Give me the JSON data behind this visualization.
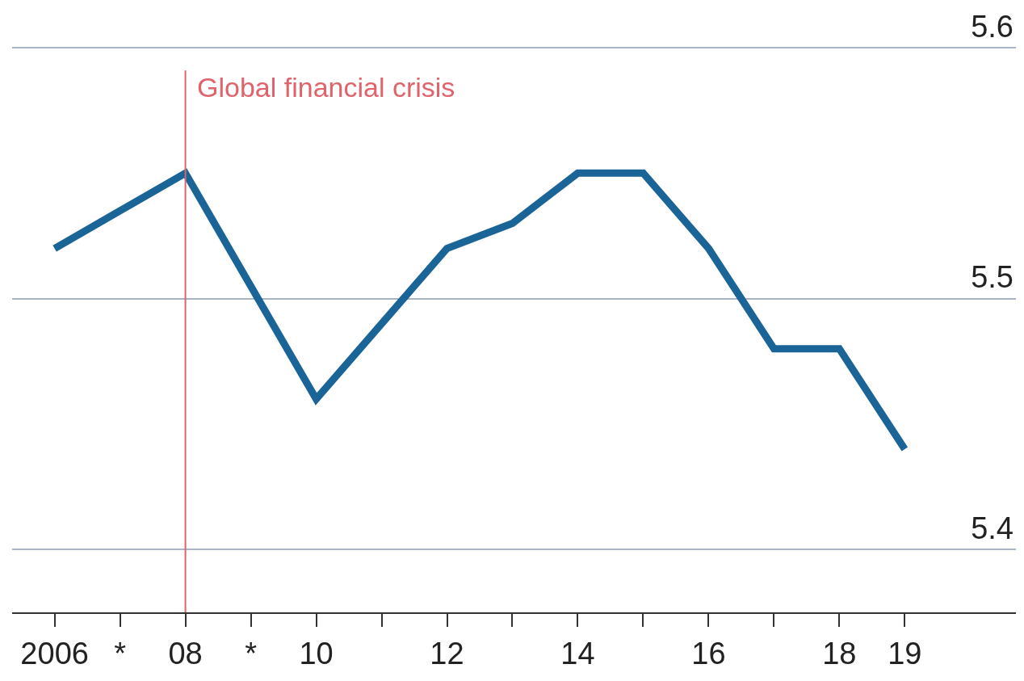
{
  "chart_data": {
    "type": "line",
    "x": [
      2006,
      2007,
      2008,
      2009,
      2010,
      2011,
      2012,
      2013,
      2014,
      2015,
      2016,
      2017,
      2018,
      2019
    ],
    "series": [
      {
        "color": "#1a6497",
        "values": [
          5.52,
          5.535,
          5.55,
          5.505,
          5.46,
          5.49,
          5.52,
          5.53,
          5.55,
          5.55,
          5.52,
          5.48,
          5.48,
          5.44
        ]
      }
    ],
    "xlim": [
      2005.35,
      2020.7
    ],
    "ylim": [
      5.375,
      5.619
    ],
    "xticks": [
      {
        "value": 2006,
        "label": "2006"
      },
      {
        "value": 2007,
        "label": "*"
      },
      {
        "value": 2008,
        "label": "08"
      },
      {
        "value": 2009,
        "label": "*"
      },
      {
        "value": 2010,
        "label": "10"
      },
      {
        "value": 2011,
        "label": null
      },
      {
        "value": 2012,
        "label": "12"
      },
      {
        "value": 2013,
        "label": null
      },
      {
        "value": 2014,
        "label": "14"
      },
      {
        "value": 2015,
        "label": null
      },
      {
        "value": 2016,
        "label": "16"
      },
      {
        "value": 2017,
        "label": null
      },
      {
        "value": 2018,
        "label": "18"
      },
      {
        "value": 2019,
        "label": "19"
      }
    ],
    "yticks": [
      5.4,
      5.5,
      5.6
    ],
    "ref_lines": [
      {
        "axis": "x",
        "value": 2008,
        "label": "Global financial crisis",
        "color": "#e0636b"
      }
    ],
    "grid": "y",
    "marker": "none",
    "line_style": "solid"
  }
}
